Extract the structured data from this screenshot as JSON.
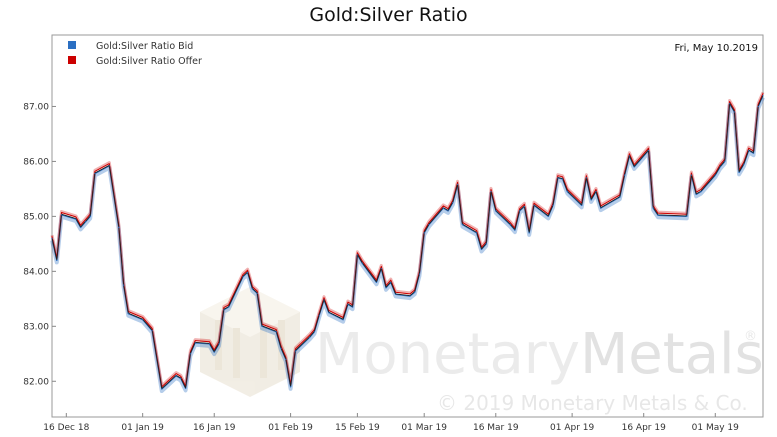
{
  "chart_data": {
    "type": "line",
    "title": "Gold:Silver Ratio",
    "date_label": "Fri, May 10.2019",
    "xlabel": "",
    "ylabel": "",
    "ylim": [
      81.35,
      88.3
    ],
    "yticks": [
      82.0,
      83.0,
      84.0,
      85.0,
      86.0,
      87.0
    ],
    "ytick_labels": [
      "82.00",
      "83.00",
      "84.00",
      "85.00",
      "86.00",
      "87.00"
    ],
    "xticks": [
      "2018-12-16",
      "2019-01-01",
      "2019-01-16",
      "2019-02-01",
      "2019-02-15",
      "2019-03-01",
      "2019-03-16",
      "2019-04-01",
      "2019-04-16",
      "2019-05-01"
    ],
    "xtick_labels": [
      "16 Dec 18",
      "01 Jan 19",
      "16 Jan 19",
      "01 Feb 19",
      "15 Feb 19",
      "01 Mar 19",
      "16 Mar 19",
      "01 Apr 19",
      "16 Apr 19",
      "01 May 19"
    ],
    "xlim": [
      "2018-12-13",
      "2019-05-11"
    ],
    "grid": false,
    "legend_position": "top-left",
    "series": [
      {
        "name": "Gold:Silver Ratio Bid",
        "color": "#2b6fc2"
      },
      {
        "name": "Gold:Silver Ratio Offer",
        "color": "#cc0000"
      }
    ],
    "points": [
      [
        "2018-12-13",
        84.6
      ],
      [
        "2018-12-14",
        84.2
      ],
      [
        "2018-12-15",
        85.03
      ],
      [
        "2018-12-18",
        84.95
      ],
      [
        "2018-12-19",
        84.8
      ],
      [
        "2018-12-20",
        84.9
      ],
      [
        "2018-12-21",
        85.0
      ],
      [
        "2018-12-22",
        85.78
      ],
      [
        "2018-12-25",
        85.92
      ],
      [
        "2018-12-27",
        84.8
      ],
      [
        "2018-12-28",
        83.75
      ],
      [
        "2018-12-29",
        83.23
      ],
      [
        "2019-01-01",
        83.12
      ],
      [
        "2019-01-03",
        82.92
      ],
      [
        "2019-01-05",
        81.86
      ],
      [
        "2019-01-08",
        82.1
      ],
      [
        "2019-01-09",
        82.05
      ],
      [
        "2019-01-10",
        81.87
      ],
      [
        "2019-01-11",
        82.5
      ],
      [
        "2019-01-12",
        82.7
      ],
      [
        "2019-01-15",
        82.68
      ],
      [
        "2019-01-16",
        82.53
      ],
      [
        "2019-01-17",
        82.68
      ],
      [
        "2019-01-18",
        83.3
      ],
      [
        "2019-01-19",
        83.35
      ],
      [
        "2019-01-22",
        83.9
      ],
      [
        "2019-01-23",
        83.98
      ],
      [
        "2019-01-24",
        83.68
      ],
      [
        "2019-01-25",
        83.6
      ],
      [
        "2019-01-26",
        83.0
      ],
      [
        "2019-01-29",
        82.9
      ],
      [
        "2019-01-30",
        82.6
      ],
      [
        "2019-01-31",
        82.4
      ],
      [
        "2019-02-01",
        81.9
      ],
      [
        "2019-02-02",
        82.55
      ],
      [
        "2019-02-05",
        82.8
      ],
      [
        "2019-02-06",
        82.9
      ],
      [
        "2019-02-07",
        83.2
      ],
      [
        "2019-02-08",
        83.48
      ],
      [
        "2019-02-09",
        83.25
      ],
      [
        "2019-02-12",
        83.12
      ],
      [
        "2019-02-13",
        83.4
      ],
      [
        "2019-02-14",
        83.35
      ],
      [
        "2019-02-15",
        84.3
      ],
      [
        "2019-02-16",
        84.15
      ],
      [
        "2019-02-19",
        83.8
      ],
      [
        "2019-02-20",
        84.05
      ],
      [
        "2019-02-21",
        83.7
      ],
      [
        "2019-02-22",
        83.8
      ],
      [
        "2019-02-23",
        83.58
      ],
      [
        "2019-02-26",
        83.55
      ],
      [
        "2019-02-27",
        83.62
      ],
      [
        "2019-02-28",
        83.95
      ],
      [
        "2019-03-01",
        84.7
      ],
      [
        "2019-03-02",
        84.85
      ],
      [
        "2019-03-05",
        85.15
      ],
      [
        "2019-03-06",
        85.1
      ],
      [
        "2019-03-07",
        85.25
      ],
      [
        "2019-03-08",
        85.58
      ],
      [
        "2019-03-09",
        84.85
      ],
      [
        "2019-03-12",
        84.7
      ],
      [
        "2019-03-13",
        84.4
      ],
      [
        "2019-03-14",
        84.5
      ],
      [
        "2019-03-15",
        85.45
      ],
      [
        "2019-03-16",
        85.1
      ],
      [
        "2019-03-19",
        84.85
      ],
      [
        "2019-03-20",
        84.75
      ],
      [
        "2019-03-21",
        85.1
      ],
      [
        "2019-03-22",
        85.18
      ],
      [
        "2019-03-23",
        84.7
      ],
      [
        "2019-03-24",
        85.2
      ],
      [
        "2019-03-27",
        85.0
      ],
      [
        "2019-03-28",
        85.2
      ],
      [
        "2019-03-29",
        85.7
      ],
      [
        "2019-03-30",
        85.68
      ],
      [
        "2019-03-31",
        85.45
      ],
      [
        "2019-04-03",
        85.2
      ],
      [
        "2019-04-04",
        85.7
      ],
      [
        "2019-04-05",
        85.3
      ],
      [
        "2019-04-06",
        85.45
      ],
      [
        "2019-04-07",
        85.15
      ],
      [
        "2019-04-11",
        85.35
      ],
      [
        "2019-04-12",
        85.75
      ],
      [
        "2019-04-13",
        86.1
      ],
      [
        "2019-04-14",
        85.9
      ],
      [
        "2019-04-17",
        86.2
      ],
      [
        "2019-04-18",
        85.15
      ],
      [
        "2019-04-19",
        85.02
      ],
      [
        "2019-04-25",
        85.0
      ],
      [
        "2019-04-26",
        85.75
      ],
      [
        "2019-04-27",
        85.4
      ],
      [
        "2019-04-28",
        85.45
      ],
      [
        "2019-05-01",
        85.75
      ],
      [
        "2019-05-02",
        85.9
      ],
      [
        "2019-05-03",
        86.0
      ],
      [
        "2019-05-04",
        87.05
      ],
      [
        "2019-05-05",
        86.9
      ],
      [
        "2019-05-06",
        85.8
      ],
      [
        "2019-05-07",
        85.95
      ],
      [
        "2019-05-08",
        86.2
      ],
      [
        "2019-05-09",
        86.15
      ],
      [
        "2019-05-10",
        87.0
      ],
      [
        "2019-05-11",
        87.2
      ]
    ],
    "offer_spread": 0.04
  },
  "watermark": {
    "brand_light": "Monetary",
    "brand_dark": "Metals",
    "registered": "®",
    "copyright": "© 2019 Monetary Metals & Co."
  }
}
